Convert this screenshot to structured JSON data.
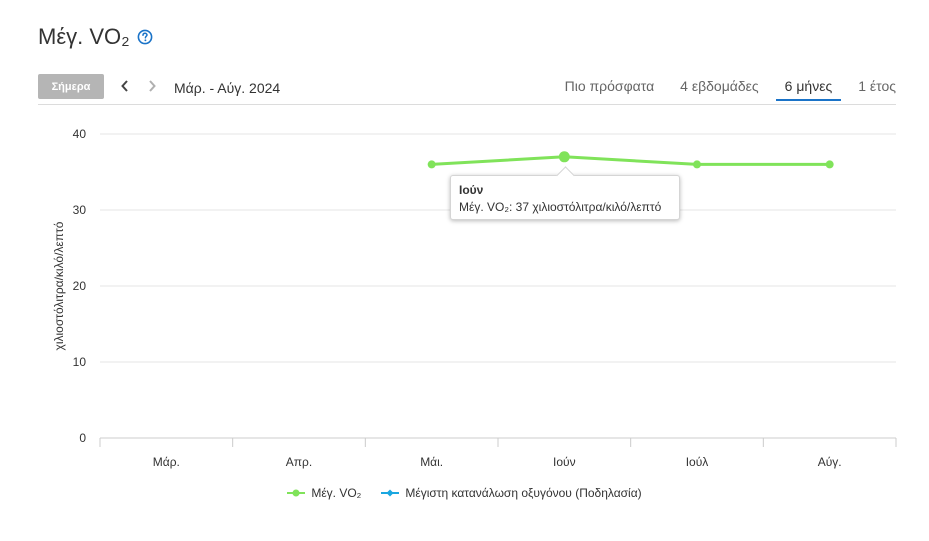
{
  "header": {
    "title": "Μέγ. VO₂",
    "help_icon": "question-circle-icon"
  },
  "toolbar": {
    "today_label": "Σήμερα",
    "prev_icon": "chevron-left-icon",
    "next_icon": "chevron-right-icon",
    "date_range": "Μάρ. - Αύγ. 2024",
    "tabs": [
      {
        "label": "Πιο πρόσφατα",
        "active": false
      },
      {
        "label": "4 εβδομάδες",
        "active": false
      },
      {
        "label": "6 μήνες",
        "active": true
      },
      {
        "label": "1 έτος",
        "active": false
      }
    ]
  },
  "colors": {
    "series_vo2": "#80e35a",
    "series_cycling": "#1aa7e0",
    "accent": "#1a73c8"
  },
  "tooltip": {
    "title": "Ιούν",
    "body": "Μέγ. VO₂: 37 χιλιοστόλιτρα/κιλό/λεπτό"
  },
  "chart_data": {
    "type": "line",
    "title": "",
    "ylabel": "χιλιοστόλιτρα/κιλό/λεπτό",
    "xlabel": "",
    "categories": [
      "Μάρ.",
      "Απρ.",
      "Μάι.",
      "Ιούν",
      "Ιούλ",
      "Αύγ."
    ],
    "ylim": [
      0,
      40
    ],
    "yticks": [
      0,
      10,
      20,
      30,
      40
    ],
    "grid": true,
    "legend": "bottom",
    "series": [
      {
        "name": "Μέγ. VO₂",
        "values": [
          null,
          null,
          36,
          37,
          36,
          36
        ]
      },
      {
        "name": "Μέγιστη κατανάλωση οξυγόνου (Ποδηλασία)",
        "values": [
          null,
          null,
          null,
          null,
          null,
          null
        ]
      }
    ]
  }
}
